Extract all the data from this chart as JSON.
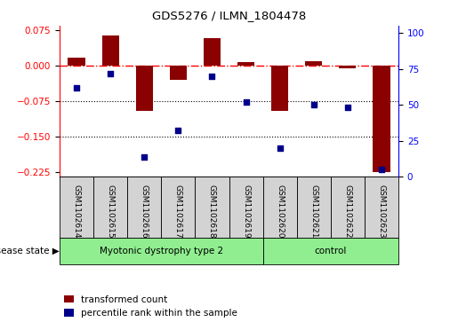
{
  "title": "GDS5276 / ILMN_1804478",
  "samples": [
    "GSM1102614",
    "GSM1102615",
    "GSM1102616",
    "GSM1102617",
    "GSM1102618",
    "GSM1102619",
    "GSM1102620",
    "GSM1102621",
    "GSM1102622",
    "GSM1102623"
  ],
  "bar_values": [
    0.018,
    0.065,
    -0.095,
    -0.03,
    0.058,
    0.008,
    -0.095,
    0.01,
    -0.005,
    -0.225
  ],
  "dot_values_pct": [
    62,
    72,
    14,
    32,
    70,
    52,
    20,
    50,
    48,
    5
  ],
  "groups": [
    {
      "label": "Myotonic dystrophy type 2",
      "start": 0,
      "end": 6,
      "color": "#90EE90"
    },
    {
      "label": "control",
      "start": 6,
      "end": 10,
      "color": "#90EE90"
    }
  ],
  "bar_color": "#8B0000",
  "dot_color": "#00008B",
  "bar_width": 0.5,
  "ylim_left": [
    -0.235,
    0.085
  ],
  "ylim_right": [
    0,
    105
  ],
  "yticks_left": [
    0.075,
    0.0,
    -0.075,
    -0.15,
    -0.225
  ],
  "yticks_right": [
    100,
    75,
    50,
    25,
    0
  ],
  "hline_y": 0.0,
  "dotted_lines": [
    -0.075,
    -0.15
  ],
  "legend_items": [
    {
      "label": "transformed count",
      "color": "#8B0000"
    },
    {
      "label": "percentile rank within the sample",
      "color": "#00008B"
    }
  ],
  "disease_state_label": "disease state",
  "sample_box_color": "#d3d3d3",
  "n_myotonic": 6,
  "n_control": 4
}
